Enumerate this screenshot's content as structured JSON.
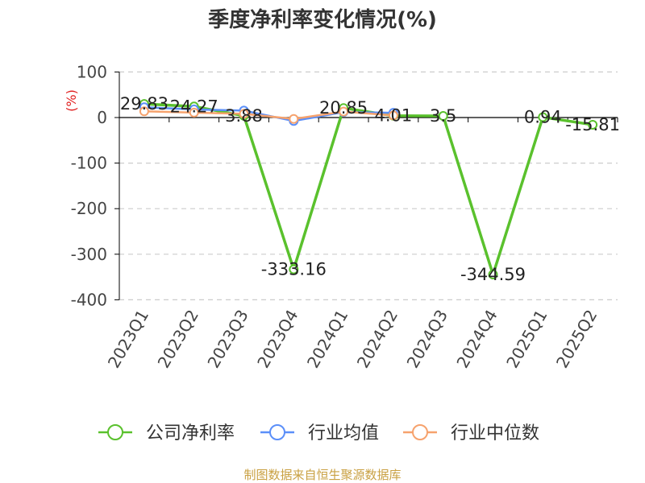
{
  "source_note": "制图数据来自恒生聚源数据库",
  "colors": {
    "ylabel": "#e02020",
    "footer": "#c9a042",
    "grid": "#cccccc",
    "axis": "#000000"
  },
  "chart_data": {
    "type": "line",
    "title": "季度净利率变化情况(%)",
    "xlabel": "",
    "ylabel": "(%)",
    "categories": [
      "2023Q1",
      "2023Q2",
      "2023Q3",
      "2023Q4",
      "2024Q1",
      "2024Q2",
      "2024Q3",
      "2024Q4",
      "2025Q1",
      "2025Q2"
    ],
    "ylim": [
      -400,
      100
    ],
    "yticks": [
      100,
      0,
      -100,
      -200,
      -300,
      -400
    ],
    "grid": true,
    "legend": "bottom",
    "series": [
      {
        "name": "公司净利率",
        "color": "#5ac12d",
        "data_labels": true,
        "values": [
          29.83,
          24.27,
          3.88,
          -333.16,
          20.85,
          4.01,
          3.5,
          -344.59,
          0.94,
          -15.81
        ]
      },
      {
        "name": "行业均值",
        "color": "#5b8ff9",
        "data_labels": false,
        "values": [
          22.5,
          17.8,
          15.2,
          -7.6,
          11.9,
          10.3,
          null,
          null,
          null,
          null
        ]
      },
      {
        "name": "行业中位数",
        "color": "#f6a26d",
        "data_labels": false,
        "values": [
          13.6,
          10.8,
          8.2,
          -3.1,
          13.0,
          4.6,
          null,
          null,
          null,
          null
        ]
      }
    ]
  }
}
